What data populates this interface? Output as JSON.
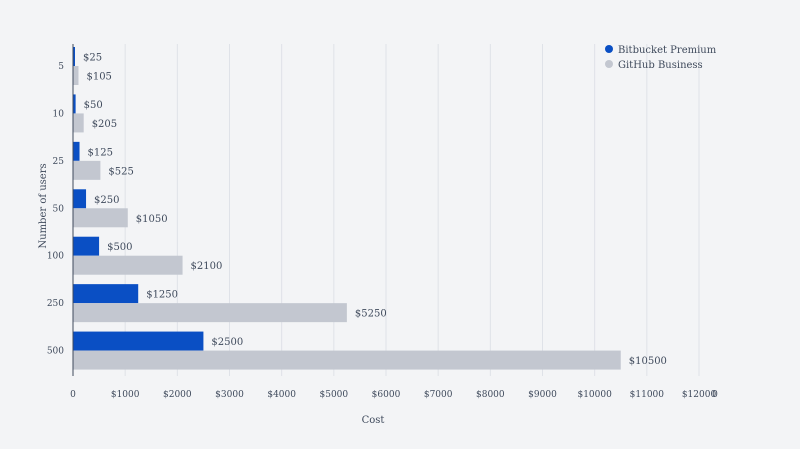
{
  "chart_data": {
    "type": "bar",
    "orientation": "horizontal",
    "title": "",
    "xlabel": "Cost",
    "ylabel": "Number of users",
    "categories": [
      "5",
      "10",
      "25",
      "50",
      "100",
      "250",
      "500"
    ],
    "series": [
      {
        "name": "Bitbucket Premium",
        "color": "#0a4fc4",
        "values": [
          25,
          50,
          125,
          250,
          500,
          1250,
          2500
        ],
        "labels": [
          "$25",
          "$50",
          "$125",
          "$250",
          "$500",
          "$1250",
          "$2500"
        ]
      },
      {
        "name": "GitHub Business",
        "color": "#c3c7d0",
        "values": [
          105,
          205,
          525,
          1050,
          2100,
          5250,
          10500
        ],
        "labels": [
          "$105",
          "$205",
          "$525",
          "$1050",
          "$2100",
          "$5250",
          "$10500"
        ]
      }
    ],
    "xlim": [
      0,
      12000
    ],
    "xticks": [
      0,
      1000,
      2000,
      3000,
      4000,
      5000,
      6000,
      7000,
      8000,
      9000,
      10000,
      11000,
      12000
    ],
    "xtick_labels": [
      "0",
      "$1000",
      "$2000",
      "$3000",
      "$4000",
      "$5000",
      "$6000",
      "$7000",
      "$8000",
      "$9000",
      "$10000",
      "$11000",
      "$12000"
    ],
    "trailing_tick_label": "0",
    "grid": true,
    "legend_position": "top-right"
  }
}
